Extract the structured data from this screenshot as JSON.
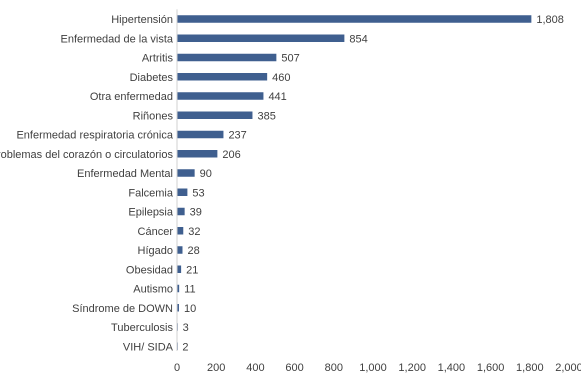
{
  "chart_data": {
    "type": "bar",
    "orientation": "horizontal",
    "categories": [
      "Hipertensión",
      "Enfermedad de la vista",
      "Artritis",
      "Diabetes",
      "Otra enfermedad",
      "Riñones",
      "Enfermedad respiratoria crónica",
      "Problemas del corazón  o circulatorios",
      "Enfermedad Mental",
      "Falcemia",
      "Epilepsia",
      "Cáncer",
      "Hígado",
      "Obesidad",
      "Autismo",
      "Síndrome de DOWN",
      "Tuberculosis",
      "VIH/ SIDA"
    ],
    "values": [
      1808,
      854,
      507,
      460,
      441,
      385,
      237,
      206,
      90,
      53,
      39,
      32,
      28,
      21,
      11,
      10,
      3,
      2
    ],
    "value_labels": [
      "1,808",
      "854",
      "507",
      "460",
      "441",
      "385",
      "237",
      "206",
      "90",
      "53",
      "39",
      "32",
      "28",
      "21",
      "11",
      "10",
      "3",
      "2"
    ],
    "x_ticks": [
      0,
      200,
      400,
      600,
      800,
      1000,
      1200,
      1400,
      1600,
      1800,
      2000
    ],
    "x_tick_labels": [
      "0",
      "200",
      "400",
      "600",
      "800",
      "1,000",
      "1,200",
      "1,400",
      "1,600",
      "1,800",
      "2,000"
    ],
    "xlim": [
      0,
      2000
    ],
    "grid": false,
    "bar_color": "#3f5f8f",
    "title": "",
    "xlabel": "",
    "ylabel": ""
  }
}
